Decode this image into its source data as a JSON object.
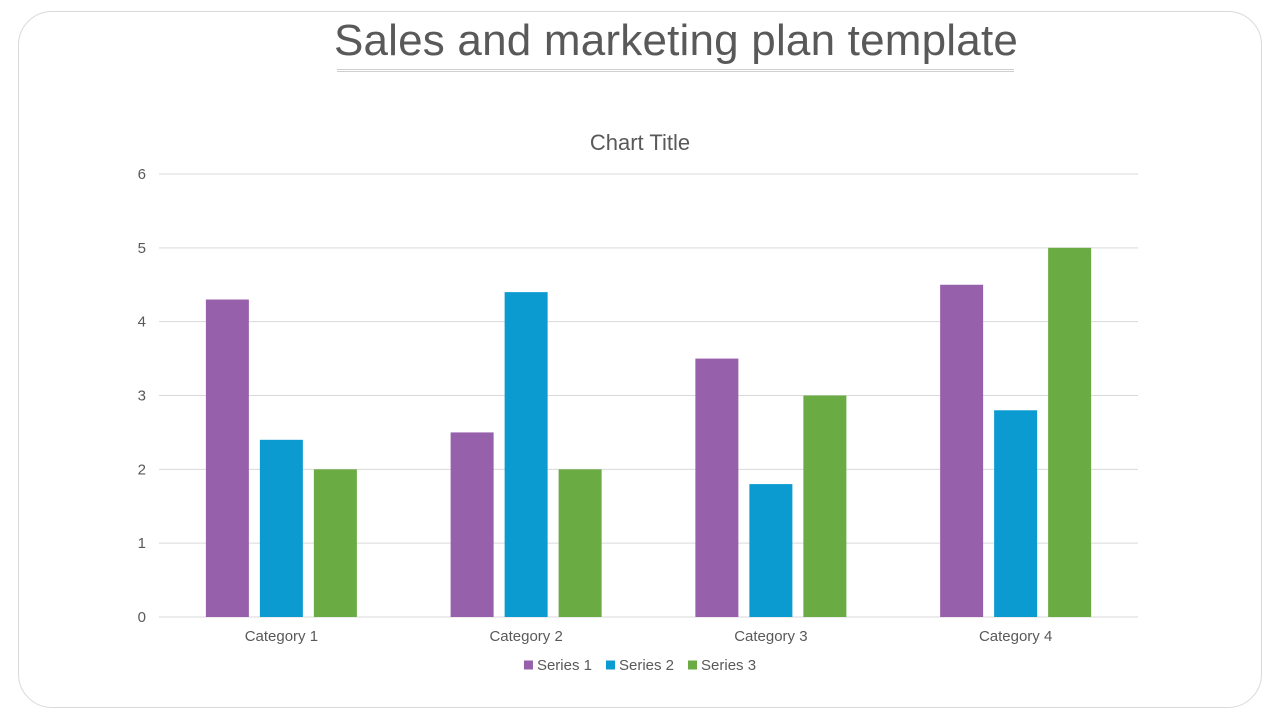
{
  "slide": {
    "title": "Sales and marketing plan template"
  },
  "chart_data": {
    "type": "bar",
    "title": "Chart Title",
    "categories": [
      "Category 1",
      "Category 2",
      "Category 3",
      "Category 4"
    ],
    "series": [
      {
        "name": "Series 1",
        "color": "#9760AA",
        "values": [
          4.3,
          2.5,
          3.5,
          4.5
        ]
      },
      {
        "name": "Series 2",
        "color": "#0B9BD0",
        "values": [
          2.4,
          4.4,
          1.8,
          2.8
        ]
      },
      {
        "name": "Series 3",
        "color": "#6AAB43",
        "values": [
          2,
          2,
          3,
          5
        ]
      }
    ],
    "yticks": [
      "0",
      "1",
      "2",
      "3",
      "4",
      "5",
      "6"
    ],
    "ylim": [
      0,
      6
    ],
    "grid": true,
    "legend_position": "bottom",
    "gridline_color": "#d9d9d9"
  }
}
